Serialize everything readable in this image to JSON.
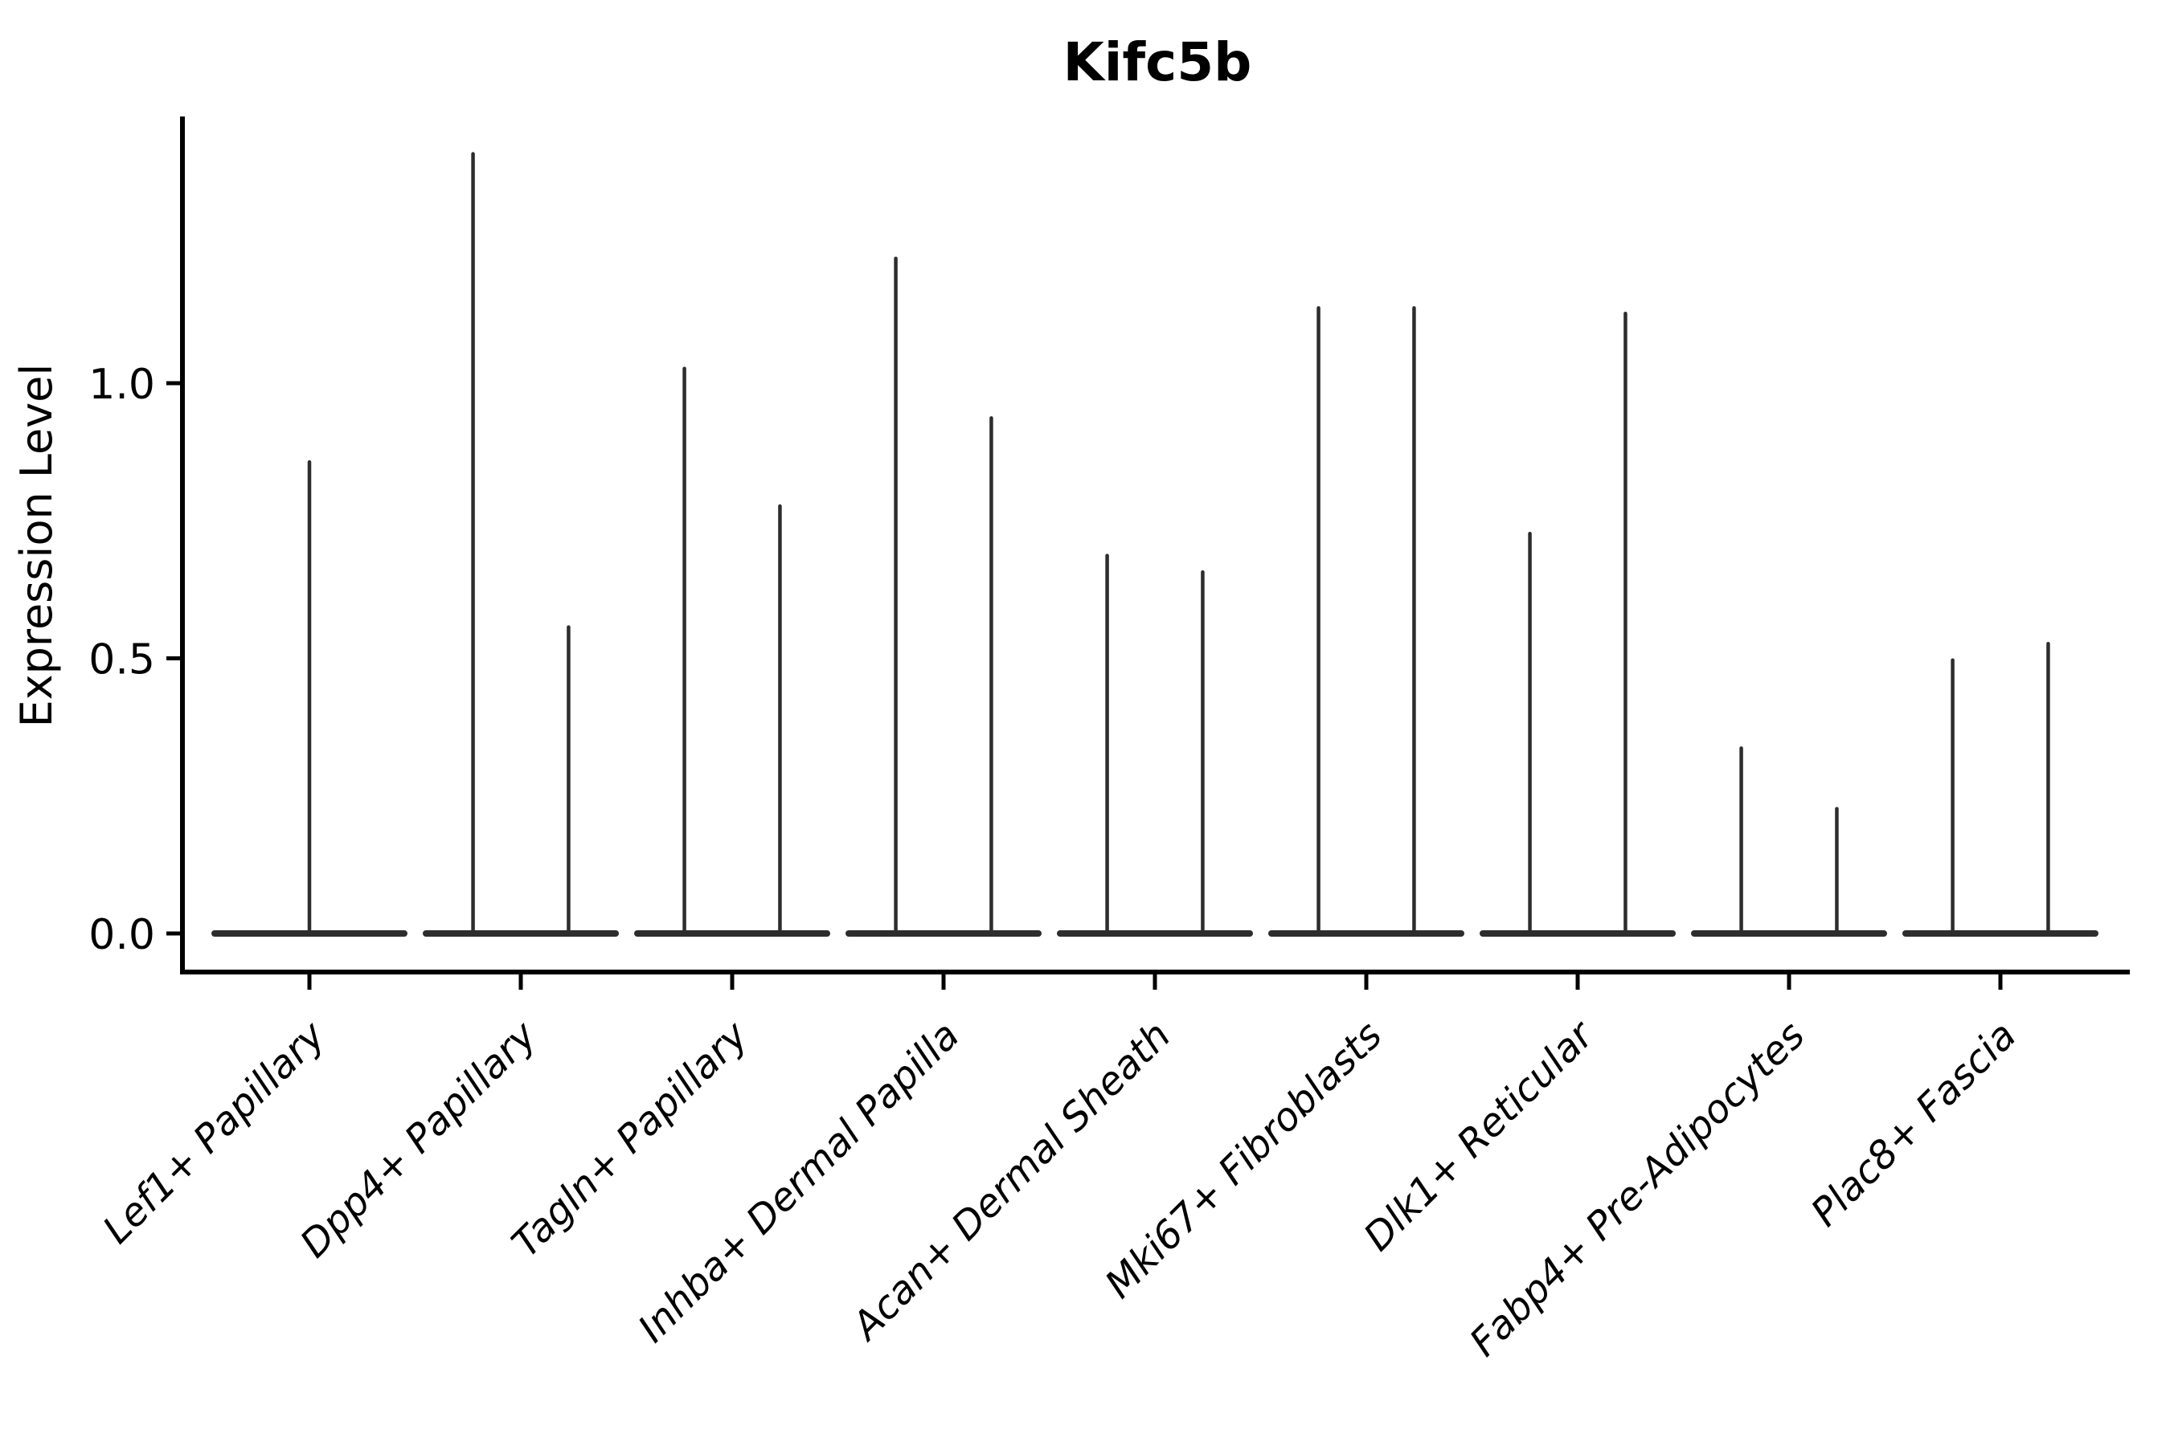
{
  "figure": {
    "background": "#ffffff"
  },
  "chart_data": {
    "type": "violin",
    "title": "Kifc5b",
    "ylabel": "Expression Level",
    "xlabel": "",
    "grid": false,
    "legend": "none",
    "ylim": [
      -0.07,
      1.49
    ],
    "ytick_values": [
      0.0,
      0.5,
      1.0
    ],
    "ytick_labels": [
      "0.0",
      "0.5",
      "1.0"
    ],
    "categories": [
      "Lef1+ Papillary",
      "Dpp4+ Papillary",
      "Tagln+ Papillary",
      "Inhba+ Dermal Papilla",
      "Acan+ Dermal Sheath",
      "Mki67+ Fibroblasts",
      "Dlk1+ Reticular",
      "Fabp4+ Pre-Adipocytes",
      "Plac8+ Fascia"
    ],
    "series": [
      {
        "category": "Lef1+ Papillary",
        "violins": [
          {
            "dx": 0.0,
            "max": 0.86
          }
        ]
      },
      {
        "category": "Dpp4+ Papillary",
        "violins": [
          {
            "dx": -0.226,
            "max": 1.42
          },
          {
            "dx": 0.226,
            "max": 0.56
          }
        ]
      },
      {
        "category": "Tagln+ Papillary",
        "violins": [
          {
            "dx": -0.226,
            "max": 1.03
          },
          {
            "dx": 0.226,
            "max": 0.78
          }
        ]
      },
      {
        "category": "Inhba+ Dermal Papilla",
        "violins": [
          {
            "dx": -0.226,
            "max": 1.23
          },
          {
            "dx": 0.226,
            "max": 0.94
          }
        ]
      },
      {
        "category": "Acan+ Dermal Sheath",
        "violins": [
          {
            "dx": -0.226,
            "max": 0.69
          },
          {
            "dx": 0.226,
            "max": 0.66
          }
        ]
      },
      {
        "category": "Mki67+ Fibroblasts",
        "violins": [
          {
            "dx": -0.226,
            "max": 1.14
          },
          {
            "dx": 0.226,
            "max": 1.14
          }
        ]
      },
      {
        "category": "Dlk1+ Reticular",
        "violins": [
          {
            "dx": -0.226,
            "max": 0.73
          },
          {
            "dx": 0.226,
            "max": 1.13
          }
        ]
      },
      {
        "category": "Fabp4+ Pre-Adipocytes",
        "violins": [
          {
            "dx": -0.226,
            "max": 0.34
          },
          {
            "dx": 0.226,
            "max": 0.23
          }
        ]
      },
      {
        "category": "Plac8+ Fascia",
        "violins": [
          {
            "dx": -0.226,
            "max": 0.5
          },
          {
            "dx": 0.226,
            "max": 0.53
          }
        ]
      }
    ],
    "violin_base_note": "each violin is a flat wide base at expression 0 with a thin spike up to its max value",
    "colors": {
      "violin": "#2d2d2d",
      "axis": "#000000",
      "text": "#000000",
      "background": "#ffffff"
    }
  }
}
